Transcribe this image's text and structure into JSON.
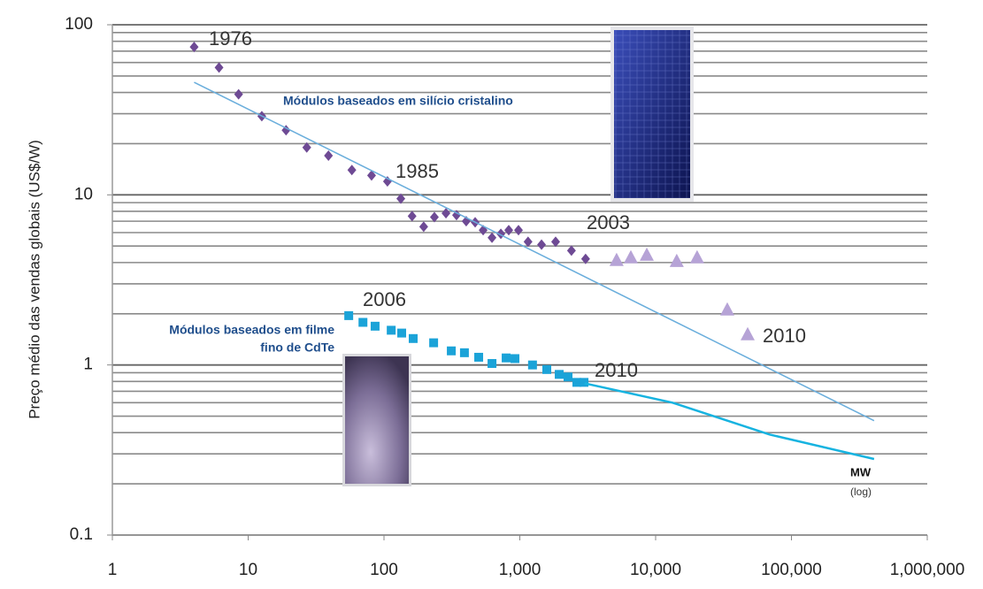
{
  "chart_data": {
    "type": "scatter",
    "y_label": "Preço médio das vendas globais (US$/W)",
    "x_unit_label": "MW",
    "x_scale_note": "(log)",
    "xscale": "log",
    "yscale": "log",
    "xlim": [
      1,
      1000000
    ],
    "ylim": [
      0.1,
      100
    ],
    "xticks": [
      1,
      10,
      100,
      {
        "value": 1000,
        "label": "1,000"
      },
      {
        "value": 10000,
        "label": "10,000"
      },
      {
        "value": 100000,
        "label": "100,000"
      },
      {
        "value": 1000000,
        "label": "1,000,000"
      }
    ],
    "yticks": [
      0.1,
      1,
      10,
      100
    ],
    "yminorticks": [
      0.2,
      0.3,
      0.4,
      0.5,
      0.6,
      0.7,
      0.8,
      0.9,
      2,
      3,
      4,
      5,
      6,
      7,
      8,
      9,
      20,
      30,
      40,
      50,
      60,
      70,
      80,
      90
    ],
    "grid": true,
    "series": [
      {
        "marker": "diamond",
        "color": "#6e4a94",
        "x": [
          4,
          6.1,
          8.5,
          12.6,
          19,
          27,
          39,
          58,
          81,
          106,
          133,
          161,
          196,
          235,
          286,
          342,
          403,
          469,
          537,
          624,
          725,
          829,
          978,
          1150,
          1445,
          1835,
          2400,
          3050
        ],
        "values": [
          74,
          56,
          39,
          29,
          24,
          19,
          17,
          14,
          13,
          12,
          9.5,
          7.5,
          6.5,
          7.4,
          7.8,
          7.6,
          7.0,
          6.9,
          6.2,
          5.6,
          5.9,
          6.2,
          6.2,
          5.3,
          5.1,
          5.3,
          4.7,
          4.2
        ]
      },
      {
        "marker": "triangle",
        "color": "#b6a3d6",
        "x": [
          5160,
          6570,
          8610,
          14300,
          20200,
          33700,
          47600
        ],
        "values": [
          4.1,
          4.25,
          4.4,
          4.05,
          4.25,
          2.1,
          1.5
        ]
      },
      {
        "marker": "square",
        "color": "#1ba3d8",
        "x": [
          55,
          70,
          86,
          113,
          135,
          164,
          232,
          313,
          391,
          498,
          624,
          793,
          921,
          1240,
          1580,
          1950,
          2265,
          2630,
          2970
        ],
        "values": [
          1.95,
          1.78,
          1.69,
          1.6,
          1.54,
          1.43,
          1.35,
          1.21,
          1.18,
          1.11,
          1.02,
          1.1,
          1.09,
          1.0,
          0.94,
          0.88,
          0.85,
          0.79,
          0.79
        ]
      },
      {
        "marker": "line",
        "color": "#6aaedc",
        "width": 1.5,
        "x": [
          4,
          406000
        ],
        "values": [
          45.9,
          0.47
        ]
      },
      {
        "marker": "line",
        "color": "#16b3e0",
        "width": 2.5,
        "x": [
          3000,
          13300,
          69000,
          406000
        ],
        "values": [
          0.78,
          0.6,
          0.39,
          0.28
        ]
      }
    ],
    "annotations": [
      "1976",
      "1985",
      "2003",
      "2006",
      "2010",
      "2010",
      "Módulos baseados em silício cristalino",
      "Módulos baseados em filme",
      "fino de CdTe"
    ]
  }
}
